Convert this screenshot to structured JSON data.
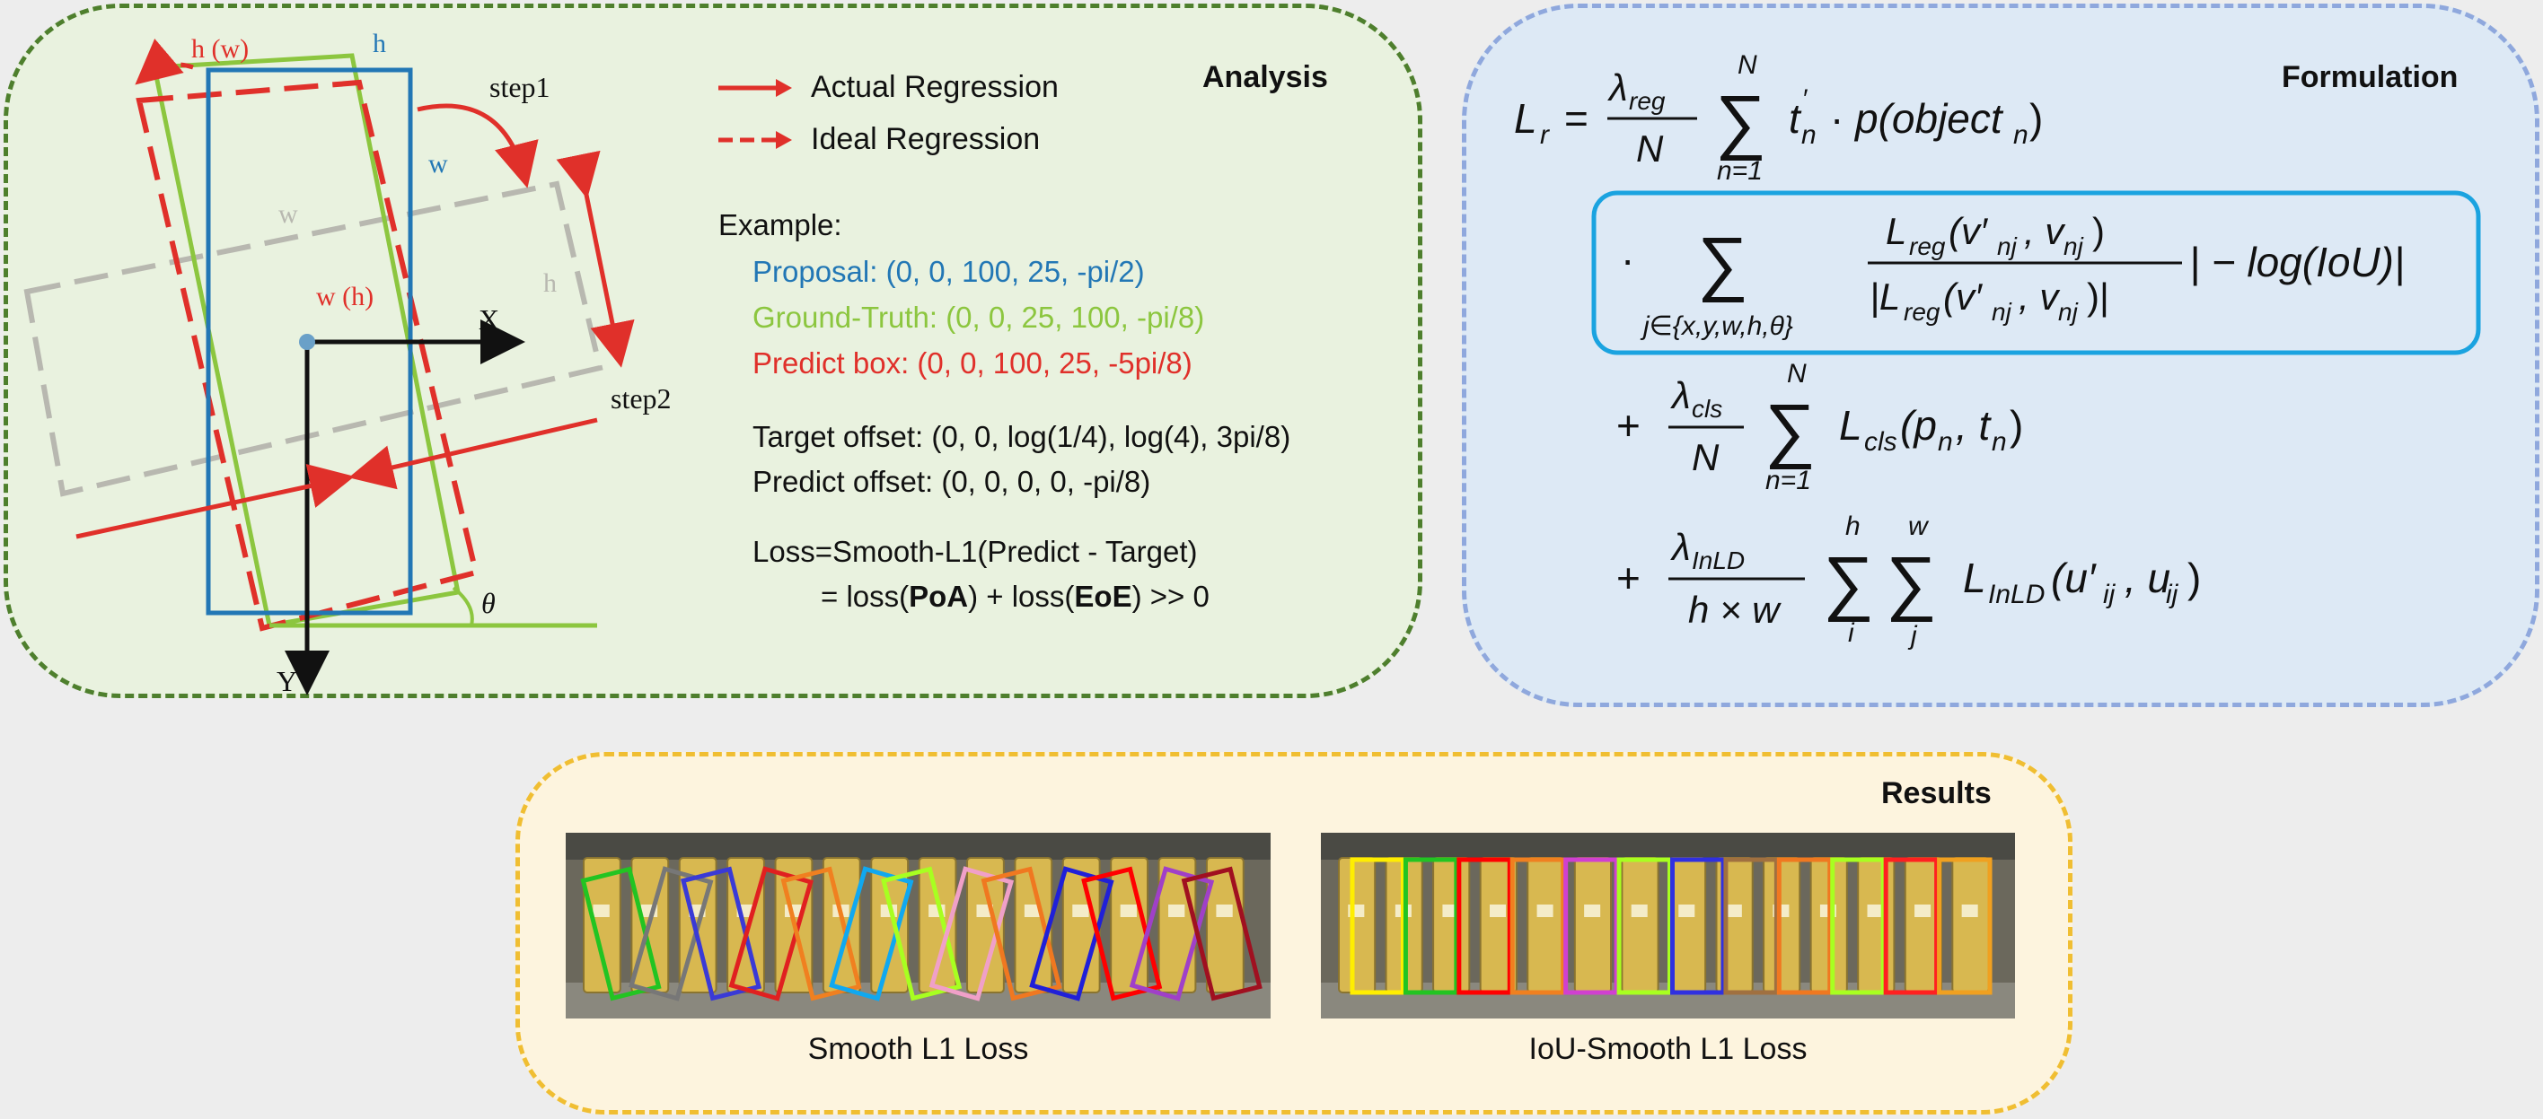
{
  "analysis": {
    "title": "Analysis",
    "diagram_labels": {
      "h_w": "h (w)",
      "h_blue": "h",
      "step1": "step1",
      "w_blue": "w",
      "w_gray": "w",
      "h_gray": "h",
      "w_h": "w (h)",
      "x_axis": "X",
      "y_axis": "Y",
      "step2": "step2",
      "theta": "θ"
    },
    "legend": [
      {
        "label": "Actual Regression",
        "style": "solid"
      },
      {
        "label": "Ideal Regression",
        "style": "dashed"
      }
    ],
    "example": {
      "heading": "Example:",
      "proposal": "Proposal: (0, 0, 100, 25, -pi/2)",
      "ground_truth": "Ground-Truth: (0, 0, 25, 100, -pi/8)",
      "predict_box": "Predict box: (0, 0, 100, 25, -5pi/8)",
      "target_offset": "Target offset: (0, 0, log(1/4), log(4), 3pi/8)",
      "predict_offset": "Predict offset: (0, 0, 0, 0, -pi/8)",
      "loss_line1": "Loss=Smooth-L1(Predict - Target)",
      "loss_line2_prefix": "= loss(",
      "poa": "PoA",
      "loss_line2_mid": ") + loss(",
      "eoe": "EoE",
      "loss_line2_suffix": ") >> 0"
    },
    "colors": {
      "proposal": "#2277b5",
      "ground_truth": "#8cc63f",
      "predict": "#e0302a",
      "gray_box": "#b8b8b0"
    }
  },
  "formulation": {
    "title": "Formulation",
    "line1": {
      "lhs": "L",
      "lhs_sub": "r",
      "eq": "=",
      "lambda_sub": "reg",
      "denom": "N",
      "sum_top": "N",
      "sum_bottom": "n=1",
      "term": "t",
      "term_sub": "n",
      "prime": "′",
      "dot": "·",
      "p": "p(object",
      "p_sub": "n",
      "close": ")"
    },
    "line2": {
      "dot": "·",
      "sum_bottom": "j∈{x,y,w,h,θ}",
      "num": "L",
      "num_sub": "reg",
      "num_args": "(v′",
      "num_args_sub": "nj",
      "num_args2": ", v",
      "num_args2_sub": "nj",
      "num_close": ")",
      "den_prefix": "|L",
      "den_close": ")|",
      "tail": "| − log(IoU)|"
    },
    "line3": {
      "plus": "+",
      "lambda_sub": "cls",
      "denom": "N",
      "sum_top": "N",
      "sum_bottom": "n=1",
      "L": "L",
      "L_sub": "cls",
      "args": "(p",
      "args_sub": "n",
      "args2": ", t",
      "args2_sub": "n",
      "close": ")"
    },
    "line4": {
      "plus": "+",
      "lambda_sub": "InLD",
      "denom": "h × w",
      "sum1_top": "h",
      "sum1_bottom": "i",
      "sum2_top": "w",
      "sum2_bottom": "j",
      "L": "L",
      "L_sub": "InLD",
      "args": "(u′",
      "args_sub": "ij",
      "args2": ", u",
      "args2_sub": "ij",
      "close": ")"
    },
    "highlight_color": "#1aa3e0"
  },
  "results": {
    "title": "Results",
    "left_caption": "Smooth L1 Loss",
    "right_caption": "IoU-Smooth L1 Loss",
    "box_colors_left": [
      "#22c422",
      "#777777",
      "#3a3ad6",
      "#e02020",
      "#f08020",
      "#10a8f0",
      "#a8ff20",
      "#f0a0c8",
      "#f07820",
      "#2020d8",
      "#ff0000",
      "#a040c8",
      "#a01020"
    ],
    "box_colors_right": [
      "#ffee00",
      "#22c422",
      "#ff0000",
      "#f08020",
      "#d040d0",
      "#a8ff20",
      "#3030e0",
      "#a07040",
      "#f07820",
      "#a8ff20",
      "#ff2020",
      "#f0a020"
    ]
  }
}
